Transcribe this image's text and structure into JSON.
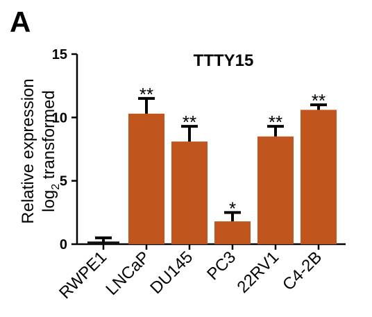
{
  "panel_label": "A",
  "chart_data": {
    "type": "bar",
    "title": "TTTY15",
    "ylabel_line1": "Relative expression",
    "ylabel_line2_base": "log",
    "ylabel_line2_sub": "2",
    "ylabel_line2_rest": " transformed",
    "xlabel": "",
    "ylim": [
      0,
      15
    ],
    "yticks": [
      0,
      5,
      10,
      15
    ],
    "categories": [
      "RWPE1",
      "LNCaP",
      "DU145",
      "PC3",
      "22RV1",
      "C4-2B"
    ],
    "values": [
      0.1,
      10.3,
      8.1,
      1.8,
      8.5,
      10.6
    ],
    "errors": [
      0.4,
      1.2,
      1.2,
      0.7,
      0.8,
      0.4
    ],
    "significance": [
      "",
      "**",
      "**",
      "*",
      "**",
      "**"
    ],
    "bar_color": "#c0561d",
    "grid": false
  }
}
